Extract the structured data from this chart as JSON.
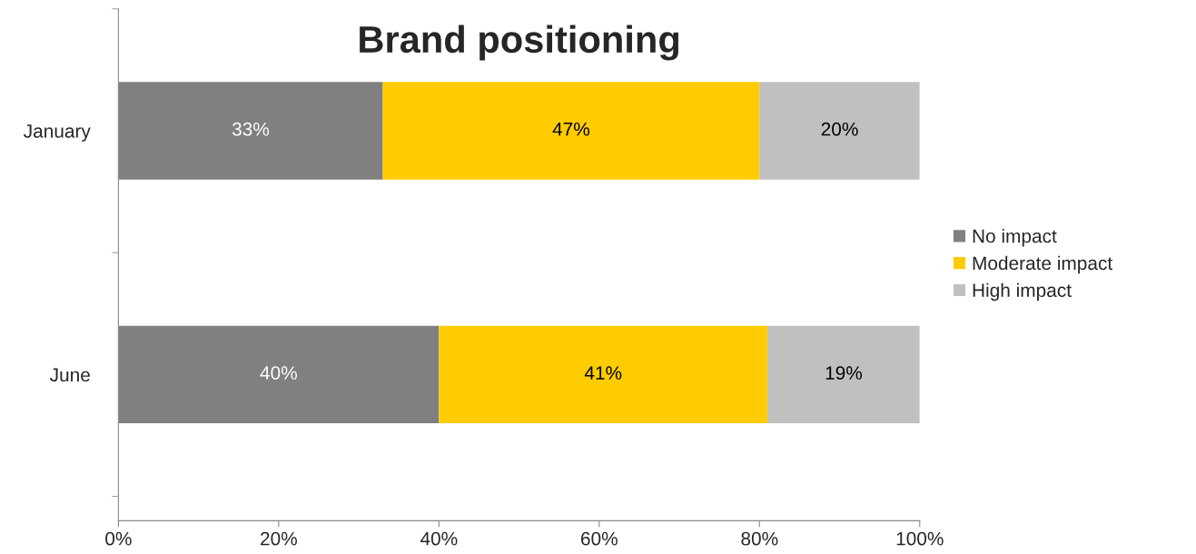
{
  "chart_data": {
    "type": "bar",
    "title": "Brand positioning",
    "orientation": "horizontal",
    "stacked": true,
    "categories": [
      "January",
      "June"
    ],
    "series": [
      {
        "name": "No impact",
        "color": "#808080",
        "values": [
          33,
          40
        ],
        "value_labels": [
          "33%",
          "40%"
        ]
      },
      {
        "name": "Moderate impact",
        "color": "#ffcc00",
        "values": [
          47,
          41
        ],
        "value_labels": [
          "47%",
          "41%"
        ]
      },
      {
        "name": "High impact",
        "color": "#c0c0c0",
        "values": [
          20,
          19
        ],
        "value_labels": [
          "20%",
          "19%"
        ]
      }
    ],
    "xlim": [
      0,
      100
    ],
    "xticks": [
      {
        "value": 0,
        "label": "0%"
      },
      {
        "value": 20,
        "label": "20%"
      },
      {
        "value": 40,
        "label": "40%"
      },
      {
        "value": 60,
        "label": "60%"
      },
      {
        "value": 80,
        "label": "80%"
      },
      {
        "value": 100,
        "label": "100%"
      }
    ],
    "legend": "right",
    "grid": false
  }
}
